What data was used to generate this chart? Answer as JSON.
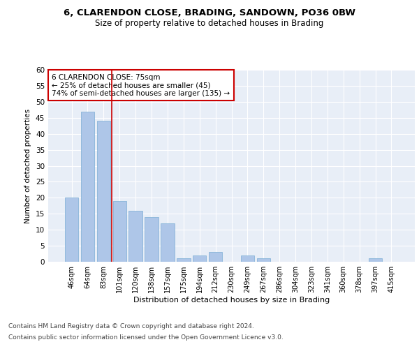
{
  "title1": "6, CLARENDON CLOSE, BRADING, SANDOWN, PO36 0BW",
  "title2": "Size of property relative to detached houses in Brading",
  "xlabel": "Distribution of detached houses by size in Brading",
  "ylabel": "Number of detached properties",
  "categories": [
    "46sqm",
    "64sqm",
    "83sqm",
    "101sqm",
    "120sqm",
    "138sqm",
    "157sqm",
    "175sqm",
    "194sqm",
    "212sqm",
    "230sqm",
    "249sqm",
    "267sqm",
    "286sqm",
    "304sqm",
    "323sqm",
    "341sqm",
    "360sqm",
    "378sqm",
    "397sqm",
    "415sqm"
  ],
  "values": [
    20,
    47,
    44,
    19,
    16,
    14,
    12,
    1,
    2,
    3,
    0,
    2,
    1,
    0,
    0,
    0,
    0,
    0,
    0,
    1,
    0
  ],
  "bar_color": "#aec6e8",
  "bar_edge_color": "#7aadd4",
  "vline_x_idx": 2,
  "vline_color": "#cc0000",
  "annotation_lines": [
    "6 CLARENDON CLOSE: 75sqm",
    "← 25% of detached houses are smaller (45)",
    "74% of semi-detached houses are larger (135) →"
  ],
  "annotation_box_color": "#ffffff",
  "annotation_box_edge": "#cc0000",
  "ylim": [
    0,
    60
  ],
  "yticks": [
    0,
    5,
    10,
    15,
    20,
    25,
    30,
    35,
    40,
    45,
    50,
    55,
    60
  ],
  "footnote1": "Contains HM Land Registry data © Crown copyright and database right 2024.",
  "footnote2": "Contains public sector information licensed under the Open Government Licence v3.0.",
  "bg_color": "#e8eef7",
  "title1_fontsize": 9.5,
  "title2_fontsize": 8.5,
  "footnote_fontsize": 6.5
}
